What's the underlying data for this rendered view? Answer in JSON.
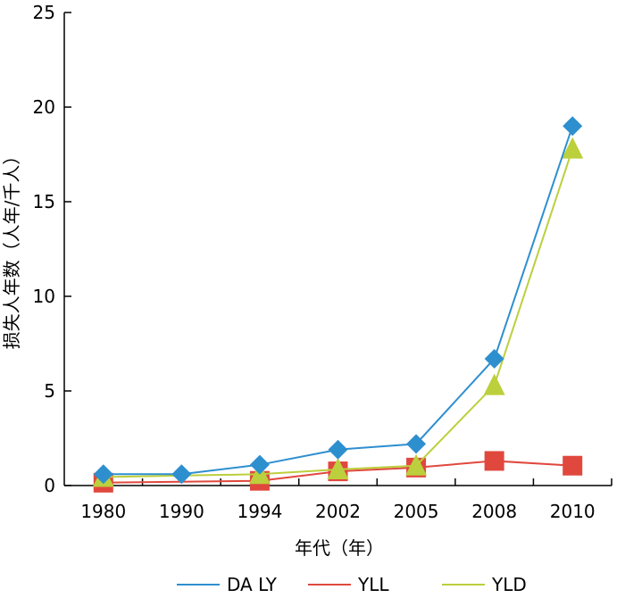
{
  "chart_data": {
    "type": "line",
    "title": "",
    "xlabel": "年代（年）",
    "ylabel": "损失人年数（人年/千人）",
    "ylim": [
      0,
      25
    ],
    "yticks": [
      0,
      5,
      10,
      15,
      20,
      25
    ],
    "categories": [
      "1980",
      "1990",
      "1994",
      "2002",
      "2005",
      "2008",
      "2010"
    ],
    "legend_position": "bottom",
    "grid": false,
    "series": [
      {
        "name": "DA LY",
        "color": "#2e8fcf",
        "marker": "diamond",
        "values": [
          0.6,
          0.6,
          1.1,
          1.9,
          2.2,
          6.7,
          19.0
        ]
      },
      {
        "name": "YLL",
        "color": "#e0483e",
        "marker": "square",
        "values": [
          0.15,
          null,
          0.25,
          0.75,
          0.95,
          1.3,
          1.05
        ]
      },
      {
        "name": "YLD",
        "color": "#bccf3c",
        "marker": "triangle",
        "values": [
          0.45,
          null,
          0.6,
          0.85,
          1.05,
          5.3,
          17.8
        ]
      }
    ]
  }
}
